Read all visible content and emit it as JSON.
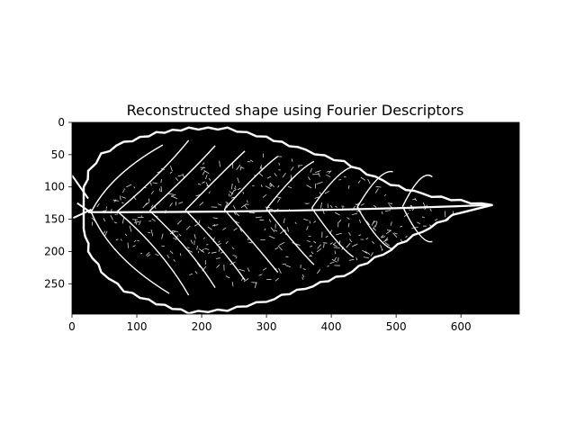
{
  "figure": {
    "title": "Reconstructed shape using Fourier Descriptors",
    "image_content": "leaf-venation-binary",
    "colors": {
      "background": "#000000",
      "foreground": "#ffffff",
      "canvas": "#ffffff"
    },
    "image_size": {
      "width": 690,
      "height": 297
    },
    "x_axis": {
      "ticks": [
        0,
        100,
        200,
        300,
        400,
        500,
        600
      ],
      "labels": [
        "0",
        "100",
        "200",
        "300",
        "400",
        "500",
        "600"
      ]
    },
    "y_axis": {
      "ticks": [
        0,
        50,
        100,
        150,
        200,
        250
      ],
      "labels": [
        "0",
        "50",
        "100",
        "150",
        "200",
        "250"
      ],
      "inverted": true
    }
  }
}
